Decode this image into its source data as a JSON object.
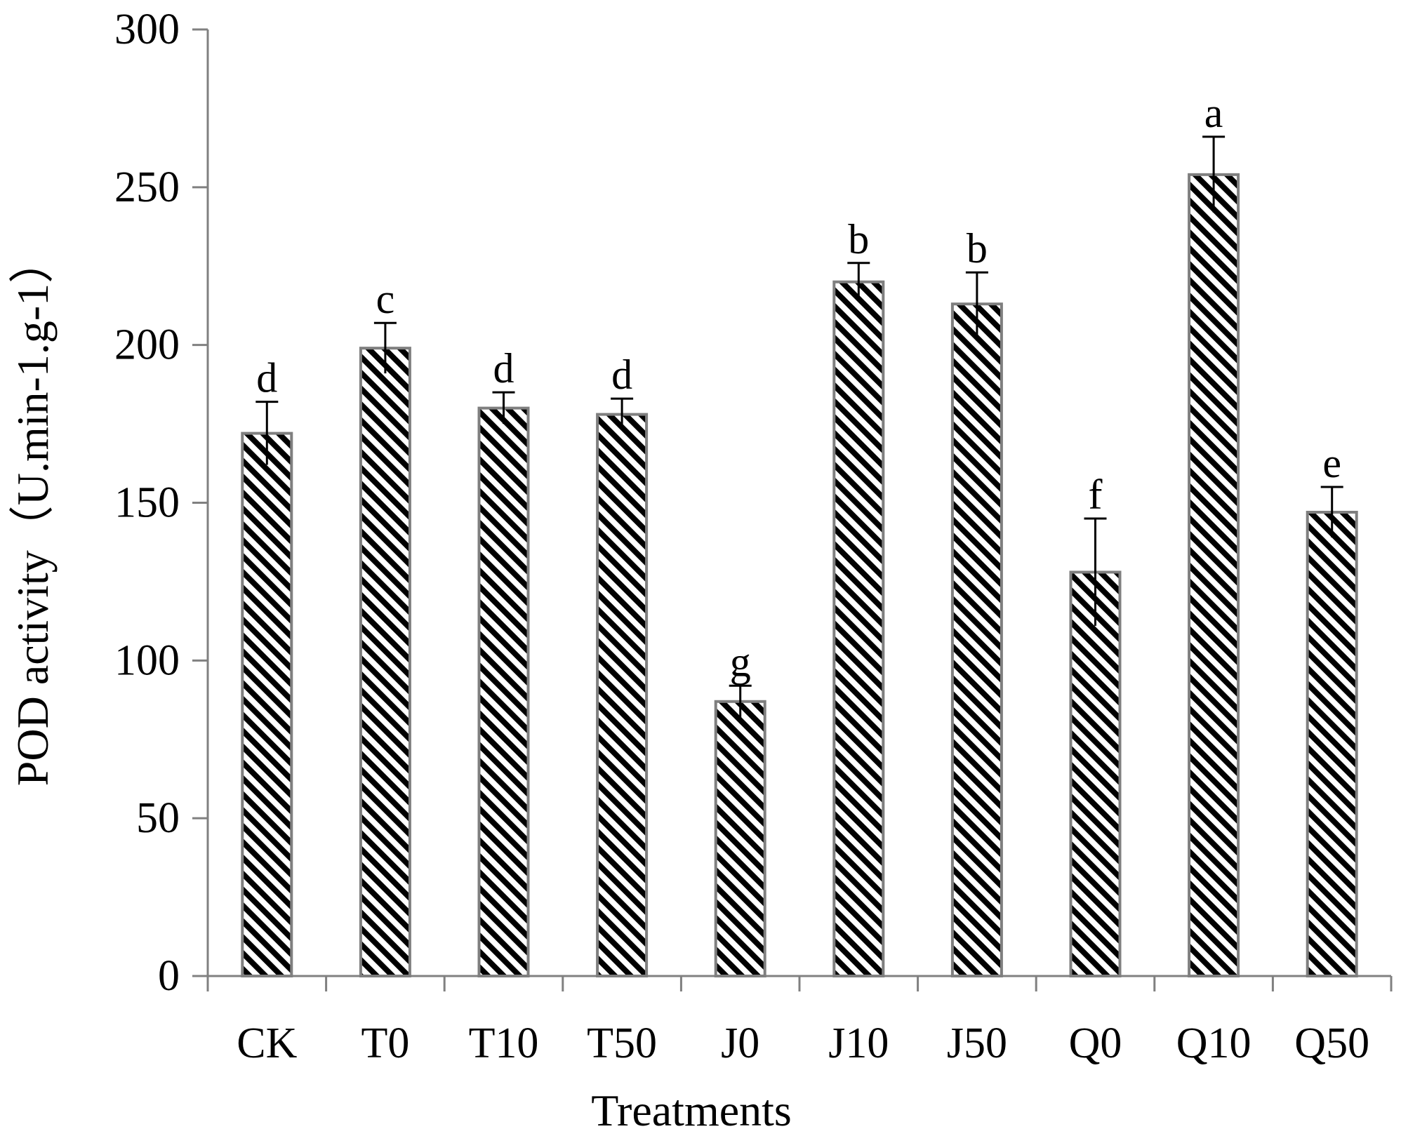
{
  "chart_data": {
    "type": "bar",
    "title": "",
    "xlabel": "Treatments",
    "ylabel": "POD activity（U.min-1.g-1）",
    "ylim": [
      0,
      300
    ],
    "yticks": [
      "0",
      "50",
      "100",
      "150",
      "200",
      "250",
      "300"
    ],
    "ytick_values": [
      0,
      50,
      100,
      150,
      200,
      250,
      300
    ],
    "grid": false,
    "legend": "none",
    "categories": [
      "CK",
      "T0",
      "T10",
      "T50",
      "J0",
      "J10",
      "J50",
      "Q0",
      "Q10",
      "Q50"
    ],
    "values": [
      172,
      199,
      180,
      178,
      87,
      220,
      213,
      128,
      254,
      147
    ],
    "error": [
      10,
      8,
      5,
      5,
      5,
      6,
      10,
      17,
      12,
      8
    ],
    "significance": [
      "d",
      "c",
      "d",
      "d",
      "g",
      "b",
      "b",
      "f",
      "a",
      "e"
    ],
    "colors": {
      "bar_stripe": "#000000",
      "bar_background": "#ffffff",
      "bar_border": "#7f7f7f",
      "axis": "#808080",
      "error_bar": "#000000"
    }
  }
}
